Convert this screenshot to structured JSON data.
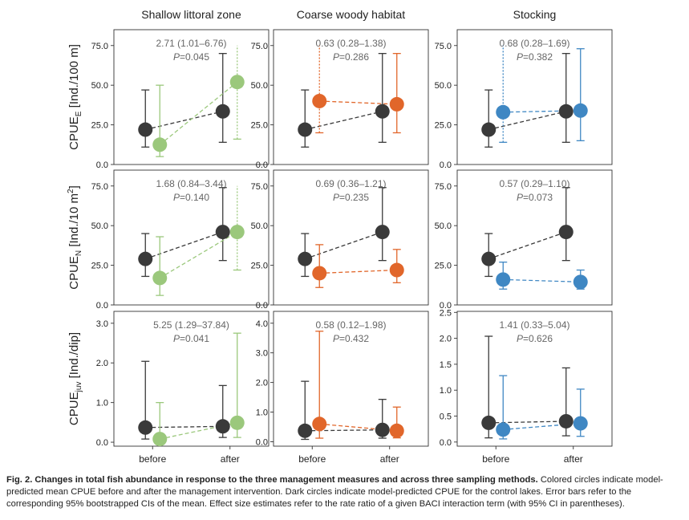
{
  "chart_data": {
    "type": "scatter",
    "columns": [
      "Shallow littoral zone",
      "Coarse woody habitat",
      "Stocking"
    ],
    "x_categories": [
      "before",
      "after"
    ],
    "colors": {
      "control": "#3a3a3a",
      "Shallow littoral zone": "#9bc87c",
      "Coarse woody habitat": "#e1662a",
      "Stocking": "#3f87c3"
    },
    "rows": [
      {
        "ylabel_main": "CPUE",
        "ylabel_sub": "E",
        "ylabel_unit": " [Ind./100 m]",
        "ylabel_sup": ""
      },
      {
        "ylabel_main": "CPUE",
        "ylabel_sub": "N",
        "ylabel_unit": " [Ind./10 m",
        "ylabel_sup": "2",
        "ylabel_end": "]"
      },
      {
        "ylabel_main": "CPUE",
        "ylabel_sub": "juv",
        "ylabel_unit": " [Ind./dip]",
        "ylabel_sup": ""
      }
    ],
    "panels": [
      {
        "row": 0,
        "col": 0,
        "ylim": [
          0,
          85
        ],
        "ticks": [
          0,
          25,
          50,
          75
        ],
        "tick_labels": [
          "0.0",
          "25.0",
          "50.0",
          "75.0"
        ],
        "effect": "2.71 (1.01–6.76)",
        "p_label": "P",
        "p_value": "=0.045",
        "control": {
          "before": {
            "mean": 22,
            "lo": 11,
            "hi": 47
          },
          "after": {
            "mean": 33.5,
            "lo": 14,
            "hi": 70
          }
        },
        "treatment": {
          "before": {
            "mean": 12.5,
            "lo": 5,
            "hi": 50
          },
          "after": {
            "mean": 52,
            "lo": 16,
            "hi": 75,
            "hi_dotted": true
          }
        }
      },
      {
        "row": 0,
        "col": 1,
        "ylim": [
          0,
          85
        ],
        "ticks": [
          0,
          25,
          50,
          75
        ],
        "tick_labels": [
          "0.0",
          "25.0",
          "50.0",
          "75.0"
        ],
        "effect": "0.63 (0.28–1.38)",
        "p_label": "P",
        "p_value": "=0.286",
        "control": {
          "before": {
            "mean": 22,
            "lo": 11,
            "hi": 47
          },
          "after": {
            "mean": 33.5,
            "lo": 14,
            "hi": 70
          }
        },
        "treatment": {
          "before": {
            "mean": 40,
            "lo": 20,
            "hi": 75,
            "hi_dotted": true
          },
          "after": {
            "mean": 38,
            "lo": 20,
            "hi": 70
          }
        }
      },
      {
        "row": 0,
        "col": 2,
        "ylim": [
          0,
          85
        ],
        "ticks": [
          0,
          25,
          50,
          75
        ],
        "tick_labels": [
          "0.0",
          "25.0",
          "50.0",
          "75.0"
        ],
        "effect": "0.68 (0.28–1.69)",
        "p_label": "P",
        "p_value": "=0.382",
        "control": {
          "before": {
            "mean": 22,
            "lo": 11,
            "hi": 47
          },
          "after": {
            "mean": 33.5,
            "lo": 14,
            "hi": 70
          }
        },
        "treatment": {
          "before": {
            "mean": 33,
            "lo": 14,
            "hi": 75,
            "hi_dotted": true
          },
          "after": {
            "mean": 34,
            "lo": 15,
            "hi": 73
          }
        }
      },
      {
        "row": 1,
        "col": 0,
        "ylim": [
          0,
          85
        ],
        "ticks": [
          0,
          25,
          50,
          75
        ],
        "tick_labels": [
          "0.0",
          "25.0",
          "50.0",
          "75.0"
        ],
        "effect": "1.68 (0.84–3.44)",
        "p_label": "P",
        "p_value": "=0.140",
        "control": {
          "before": {
            "mean": 29,
            "lo": 18,
            "hi": 45
          },
          "after": {
            "mean": 46,
            "lo": 28,
            "hi": 74
          }
        },
        "treatment": {
          "before": {
            "mean": 17,
            "lo": 6,
            "hi": 43
          },
          "after": {
            "mean": 46,
            "lo": 22,
            "hi": 75,
            "hi_dotted": true
          }
        }
      },
      {
        "row": 1,
        "col": 1,
        "ylim": [
          0,
          85
        ],
        "ticks": [
          0,
          25,
          50,
          75
        ],
        "tick_labels": [
          "0.0",
          "25.0",
          "50.0",
          "75.0"
        ],
        "effect": "0.69 (0.36–1.21)",
        "p_label": "P",
        "p_value": "=0.235",
        "control": {
          "before": {
            "mean": 29,
            "lo": 18,
            "hi": 45
          },
          "after": {
            "mean": 46,
            "lo": 28,
            "hi": 74
          }
        },
        "treatment": {
          "before": {
            "mean": 20,
            "lo": 11,
            "hi": 38
          },
          "after": {
            "mean": 22,
            "lo": 14,
            "hi": 35
          }
        }
      },
      {
        "row": 1,
        "col": 2,
        "ylim": [
          0,
          85
        ],
        "ticks": [
          0,
          25,
          50,
          75
        ],
        "tick_labels": [
          "0.0",
          "25.0",
          "50.0",
          "75.0"
        ],
        "effect": "0.57 (0.29–1.10)",
        "p_label": "P",
        "p_value": "=0.073",
        "control": {
          "before": {
            "mean": 29,
            "lo": 18,
            "hi": 45
          },
          "after": {
            "mean": 46,
            "lo": 28,
            "hi": 74
          }
        },
        "treatment": {
          "before": {
            "mean": 16,
            "lo": 10,
            "hi": 27
          },
          "after": {
            "mean": 14.5,
            "lo": 10,
            "hi": 22
          }
        }
      },
      {
        "row": 2,
        "col": 0,
        "ylim": [
          -0.1,
          3.3
        ],
        "ticks": [
          0,
          1,
          2,
          3
        ],
        "tick_labels": [
          "0.0",
          "1.0",
          "2.0",
          "3.0"
        ],
        "effect": "5.25 (1.29–37.84)",
        "p_label": "P",
        "p_value": "=0.041",
        "control": {
          "before": {
            "mean": 0.37,
            "lo": 0.08,
            "hi": 2.04
          },
          "after": {
            "mean": 0.4,
            "lo": 0.12,
            "hi": 1.43
          }
        },
        "treatment": {
          "before": {
            "mean": 0.08,
            "lo": 0.02,
            "hi": 1.0
          },
          "after": {
            "mean": 0.49,
            "lo": 0.12,
            "hi": 2.75
          }
        }
      },
      {
        "row": 2,
        "col": 1,
        "ylim": [
          -0.15,
          4.4
        ],
        "ticks": [
          0,
          1,
          2,
          3,
          4
        ],
        "tick_labels": [
          "0.0",
          "1.0",
          "2.0",
          "3.0",
          "4.0"
        ],
        "effect": "0.58 (0.12–1.98)",
        "p_label": "P",
        "p_value": "=0.432",
        "control": {
          "before": {
            "mean": 0.37,
            "lo": 0.08,
            "hi": 2.04
          },
          "after": {
            "mean": 0.4,
            "lo": 0.12,
            "hi": 1.43
          }
        },
        "treatment": {
          "before": {
            "mean": 0.6,
            "lo": 0.12,
            "hi": 3.73
          },
          "after": {
            "mean": 0.37,
            "lo": 0.13,
            "hi": 1.17
          }
        }
      },
      {
        "row": 2,
        "col": 2,
        "ylim": [
          -0.08,
          2.52
        ],
        "ticks": [
          0,
          0.5,
          1,
          1.5,
          2,
          2.5
        ],
        "tick_labels": [
          "0.0",
          "0.5",
          "1.0",
          "1.5",
          "2.0",
          "2.5"
        ],
        "effect": "1.41 (0.33–5.04)",
        "p_label": "P",
        "p_value": "=0.626",
        "control": {
          "before": {
            "mean": 0.37,
            "lo": 0.08,
            "hi": 2.04
          },
          "after": {
            "mean": 0.4,
            "lo": 0.12,
            "hi": 1.43
          }
        },
        "treatment": {
          "before": {
            "mean": 0.24,
            "lo": 0.06,
            "hi": 1.28
          },
          "after": {
            "mean": 0.36,
            "lo": 0.11,
            "hi": 1.02
          }
        }
      }
    ]
  },
  "caption": {
    "bold": "Fig. 2. Changes in total fish abundance in response to the three management measures and across three sampling methods.",
    "text": " Colored circles indicate model-predicted mean CPUE before and after the management intervention. Dark circles indicate model-predicted CPUE for the control lakes. Error bars refer to the corresponding 95% bootstrapped CIs of the mean. Effect size estimates refer to the rate ratio of a given BACI interaction term (with 95% CI in parentheses)."
  }
}
